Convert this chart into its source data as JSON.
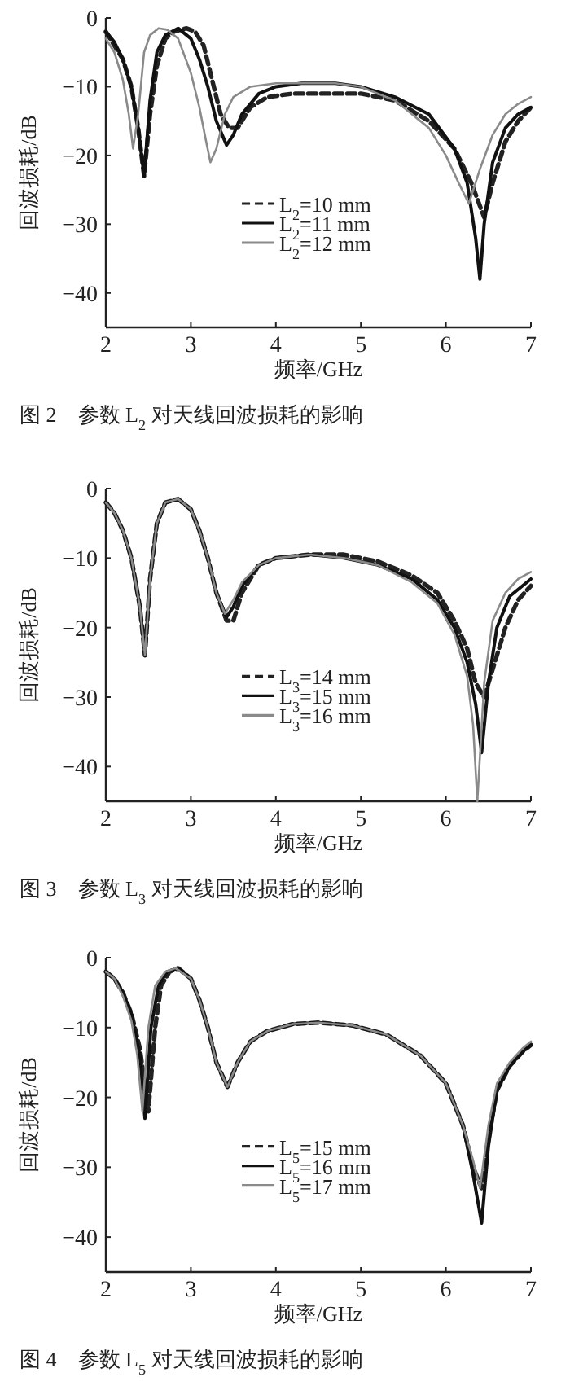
{
  "chart_data": [
    {
      "type": "line",
      "title": "图 2　参数 L$_{2}$ 对天线回波损耗的影响",
      "xlabel": "频率/GHz",
      "ylabel": "回波损耗/dB",
      "xlim": [
        2,
        7
      ],
      "ylim": [
        -45,
        0
      ],
      "xticks": [
        2,
        3,
        4,
        5,
        6,
        7
      ],
      "yticks": [
        0,
        -10,
        -20,
        -30,
        -40
      ],
      "legend": "center",
      "series": [
        {
          "name": "L$_{2}$=10 mm",
          "color": "#222222",
          "line_style": "dashed",
          "x": [
            2.0,
            2.1,
            2.2,
            2.3,
            2.38,
            2.45,
            2.52,
            2.6,
            2.7,
            2.8,
            2.95,
            3.05,
            3.15,
            3.25,
            3.35,
            3.45,
            3.55,
            3.7,
            3.9,
            4.2,
            4.6,
            5.0,
            5.4,
            5.8,
            6.1,
            6.3,
            6.45,
            6.55,
            6.7,
            6.85,
            7.0
          ],
          "values": [
            -2,
            -4,
            -6,
            -10,
            -16,
            -23,
            -14,
            -7,
            -3,
            -2,
            -1.5,
            -2,
            -4,
            -9,
            -14,
            -16,
            -16,
            -13,
            -11.5,
            -11,
            -11,
            -11,
            -12,
            -15,
            -19,
            -24,
            -29,
            -24,
            -18,
            -15,
            -13
          ]
        },
        {
          "name": "L$_{2}$=11 mm",
          "color": "#111111",
          "line_style": "solid",
          "x": [
            2.0,
            2.1,
            2.2,
            2.3,
            2.38,
            2.45,
            2.52,
            2.6,
            2.7,
            2.85,
            3.0,
            3.1,
            3.2,
            3.3,
            3.42,
            3.5,
            3.6,
            3.8,
            4.0,
            4.3,
            4.7,
            5.0,
            5.4,
            5.8,
            6.1,
            6.25,
            6.35,
            6.4,
            6.45,
            6.55,
            6.7,
            6.85,
            7.0
          ],
          "values": [
            -2,
            -3.5,
            -6,
            -10,
            -16,
            -23,
            -12,
            -5,
            -2.5,
            -1.5,
            -3,
            -6,
            -10,
            -15,
            -18.5,
            -17,
            -14,
            -11,
            -10,
            -9.5,
            -9.5,
            -10,
            -11.5,
            -14,
            -19,
            -24,
            -32,
            -38,
            -30,
            -21,
            -16,
            -14,
            -13
          ]
        },
        {
          "name": "L$_{2}$=12 mm",
          "color": "#8a8a8a",
          "line_style": "solid",
          "x": [
            2.0,
            2.1,
            2.2,
            2.27,
            2.32,
            2.38,
            2.45,
            2.52,
            2.62,
            2.72,
            2.85,
            3.0,
            3.1,
            3.18,
            3.23,
            3.3,
            3.4,
            3.5,
            3.7,
            4.0,
            4.3,
            4.7,
            5.0,
            5.4,
            5.8,
            6.0,
            6.15,
            6.27,
            6.4,
            6.55,
            6.7,
            6.85,
            7.0
          ],
          "values": [
            -3,
            -5,
            -9,
            -14,
            -19,
            -14,
            -5,
            -2.5,
            -1.5,
            -1.7,
            -3,
            -8,
            -13,
            -18,
            -21,
            -19,
            -14,
            -11.5,
            -10,
            -9.5,
            -9.5,
            -9.5,
            -10,
            -12,
            -16,
            -20,
            -24,
            -27,
            -22,
            -17,
            -14,
            -12.5,
            -11.5
          ]
        }
      ]
    },
    {
      "type": "line",
      "title": "图 3　参数 L$_{3}$ 对天线回波损耗的影响",
      "xlabel": "频率/GHz",
      "ylabel": "回波损耗/dB",
      "xlim": [
        2,
        7
      ],
      "ylim": [
        -45,
        0
      ],
      "xticks": [
        2,
        3,
        4,
        5,
        6,
        7
      ],
      "yticks": [
        0,
        -10,
        -20,
        -30,
        -40
      ],
      "legend": "center",
      "series": [
        {
          "name": "L$_{3}$=14 mm",
          "color": "#222222",
          "line_style": "dashed",
          "x": [
            2.0,
            2.1,
            2.2,
            2.3,
            2.4,
            2.46,
            2.52,
            2.6,
            2.7,
            2.85,
            3.0,
            3.1,
            3.2,
            3.3,
            3.42,
            3.5,
            3.6,
            3.8,
            4.0,
            4.4,
            4.8,
            5.2,
            5.6,
            5.9,
            6.1,
            6.25,
            6.35,
            6.45,
            6.55,
            6.7,
            6.85,
            7.0
          ],
          "values": [
            -2,
            -3.5,
            -6,
            -10,
            -17,
            -24,
            -13,
            -5,
            -2,
            -1.5,
            -3,
            -6,
            -10,
            -15,
            -19,
            -19,
            -15,
            -11,
            -10,
            -9.5,
            -9.5,
            -10.5,
            -12.5,
            -15,
            -19,
            -23,
            -28,
            -30,
            -26,
            -20,
            -16,
            -14
          ]
        },
        {
          "name": "L$_{3}$=15 mm",
          "color": "#111111",
          "line_style": "solid",
          "x": [
            2.0,
            2.1,
            2.2,
            2.3,
            2.4,
            2.46,
            2.52,
            2.6,
            2.7,
            2.85,
            3.0,
            3.1,
            3.2,
            3.3,
            3.42,
            3.5,
            3.6,
            3.8,
            4.0,
            4.4,
            4.8,
            5.2,
            5.6,
            5.9,
            6.1,
            6.25,
            6.35,
            6.42,
            6.5,
            6.6,
            6.75,
            6.9,
            7.0
          ],
          "values": [
            -2,
            -3.5,
            -6,
            -10,
            -17,
            -24,
            -13,
            -5,
            -2,
            -1.5,
            -3,
            -6,
            -10,
            -15,
            -18.5,
            -17,
            -14,
            -11,
            -10,
            -9.5,
            -10,
            -11,
            -13,
            -16,
            -20,
            -25,
            -31,
            -38,
            -28,
            -20,
            -15.5,
            -14,
            -13
          ]
        },
        {
          "name": "L$_{3}$=16 mm",
          "color": "#8a8a8a",
          "line_style": "solid",
          "x": [
            2.0,
            2.1,
            2.2,
            2.3,
            2.4,
            2.46,
            2.52,
            2.6,
            2.7,
            2.85,
            3.0,
            3.1,
            3.2,
            3.3,
            3.4,
            3.5,
            3.6,
            3.8,
            4.0,
            4.4,
            4.8,
            5.2,
            5.6,
            5.9,
            6.1,
            6.25,
            6.32,
            6.37,
            6.45,
            6.55,
            6.7,
            6.85,
            7.0
          ],
          "values": [
            -2,
            -3.5,
            -6,
            -10,
            -17,
            -24,
            -13,
            -5,
            -2,
            -1.5,
            -3,
            -6,
            -10,
            -15,
            -18,
            -16,
            -13.5,
            -11,
            -10,
            -9.5,
            -10,
            -11,
            -13.5,
            -16.5,
            -21,
            -27,
            -34,
            -45,
            -28,
            -19,
            -15,
            -13,
            -12
          ]
        }
      ]
    },
    {
      "type": "line",
      "title": "图 4　参数 L$_{5}$ 对天线回波损耗的影响",
      "xlabel": "频率/GHz",
      "ylabel": "回波损耗/dB",
      "xlim": [
        2,
        7
      ],
      "ylim": [
        -45,
        0
      ],
      "xticks": [
        2,
        3,
        4,
        5,
        6,
        7
      ],
      "yticks": [
        0,
        -10,
        -20,
        -30,
        -40
      ],
      "legend": "center",
      "series": [
        {
          "name": "L$_{5}$=15 mm",
          "color": "#222222",
          "line_style": "dashed",
          "x": [
            2.0,
            2.1,
            2.2,
            2.3,
            2.4,
            2.5,
            2.58,
            2.65,
            2.75,
            2.85,
            3.0,
            3.1,
            3.2,
            3.3,
            3.43,
            3.55,
            3.7,
            3.9,
            4.2,
            4.5,
            4.9,
            5.3,
            5.7,
            6.0,
            6.2,
            6.32,
            6.42,
            6.5,
            6.6,
            6.75,
            6.9,
            7.0
          ],
          "values": [
            -2,
            -3,
            -5,
            -8,
            -13,
            -22,
            -10,
            -4,
            -2,
            -1.5,
            -3,
            -6,
            -10,
            -15,
            -18.5,
            -15,
            -12,
            -10.5,
            -9.5,
            -9.3,
            -9.7,
            -11,
            -14,
            -18,
            -24,
            -30,
            -33,
            -26,
            -19,
            -15.5,
            -13.5,
            -12.5
          ]
        },
        {
          "name": "L$_{5}$=16 mm",
          "color": "#111111",
          "line_style": "solid",
          "x": [
            2.0,
            2.1,
            2.2,
            2.3,
            2.4,
            2.46,
            2.53,
            2.62,
            2.72,
            2.85,
            3.0,
            3.1,
            3.2,
            3.3,
            3.43,
            3.55,
            3.7,
            3.9,
            4.2,
            4.5,
            4.9,
            5.3,
            5.7,
            6.0,
            6.2,
            6.32,
            6.42,
            6.5,
            6.6,
            6.75,
            6.9,
            7.0
          ],
          "values": [
            -2,
            -3,
            -5,
            -8,
            -14,
            -23,
            -10,
            -4,
            -2,
            -1.5,
            -3,
            -6,
            -10,
            -15,
            -18.5,
            -15,
            -12,
            -10.5,
            -9.5,
            -9.3,
            -9.7,
            -11,
            -14,
            -18,
            -24,
            -31,
            -38,
            -27,
            -19,
            -15.5,
            -13.5,
            -12.5
          ]
        },
        {
          "name": "L$_{5}$=17 mm",
          "color": "#8a8a8a",
          "line_style": "solid",
          "x": [
            2.0,
            2.1,
            2.2,
            2.3,
            2.37,
            2.43,
            2.5,
            2.58,
            2.7,
            2.82,
            3.0,
            3.1,
            3.2,
            3.3,
            3.43,
            3.55,
            3.7,
            3.9,
            4.2,
            4.5,
            4.9,
            5.3,
            5.7,
            6.0,
            6.2,
            6.32,
            6.4,
            6.5,
            6.6,
            6.75,
            6.9,
            7.0
          ],
          "values": [
            -2,
            -3,
            -5.5,
            -9,
            -14,
            -22,
            -10,
            -4,
            -2,
            -1.5,
            -3,
            -6,
            -10,
            -15,
            -18.5,
            -15,
            -12,
            -10.5,
            -9.5,
            -9.3,
            -9.7,
            -11,
            -14,
            -18,
            -24,
            -29,
            -33,
            -24,
            -18,
            -15,
            -13,
            -12
          ]
        }
      ]
    }
  ]
}
